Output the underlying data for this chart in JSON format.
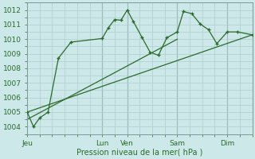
{
  "xlabel": "Pression niveau de la mer( hPa )",
  "bg_color": "#cce8e8",
  "grid_color": "#b0cccc",
  "line_color": "#2a6b2a",
  "ylim": [
    1003.5,
    1012.5
  ],
  "xlim": [
    0,
    108
  ],
  "yticks": [
    1004,
    1005,
    1006,
    1007,
    1008,
    1009,
    1010,
    1011,
    1012
  ],
  "xtick_positions": [
    0,
    36,
    48,
    72,
    96
  ],
  "xtick_labels": [
    "Jeu",
    "Lun",
    "Ven",
    "Sam",
    "Dim"
  ],
  "vlines": [
    36,
    48,
    72,
    96
  ],
  "zigzag_x": [
    0,
    3,
    6,
    10,
    15,
    21,
    36,
    39,
    42,
    45,
    48,
    51,
    55,
    59,
    63,
    67,
    72,
    75,
    79,
    83,
    87,
    91,
    96,
    101,
    108
  ],
  "zigzag_y": [
    1005.0,
    1004.0,
    1004.6,
    1005.0,
    1008.7,
    1009.8,
    1010.05,
    1010.8,
    1011.35,
    1011.3,
    1012.0,
    1011.2,
    1010.15,
    1009.1,
    1008.9,
    1010.1,
    1010.5,
    1011.9,
    1011.75,
    1011.05,
    1010.65,
    1009.7,
    1010.5,
    1010.5,
    1010.3
  ],
  "trend1_x": [
    0,
    108
  ],
  "trend1_y": [
    1005.0,
    1010.3
  ],
  "trend2_x": [
    0,
    72
  ],
  "trend2_y": [
    1004.5,
    1010.0
  ]
}
